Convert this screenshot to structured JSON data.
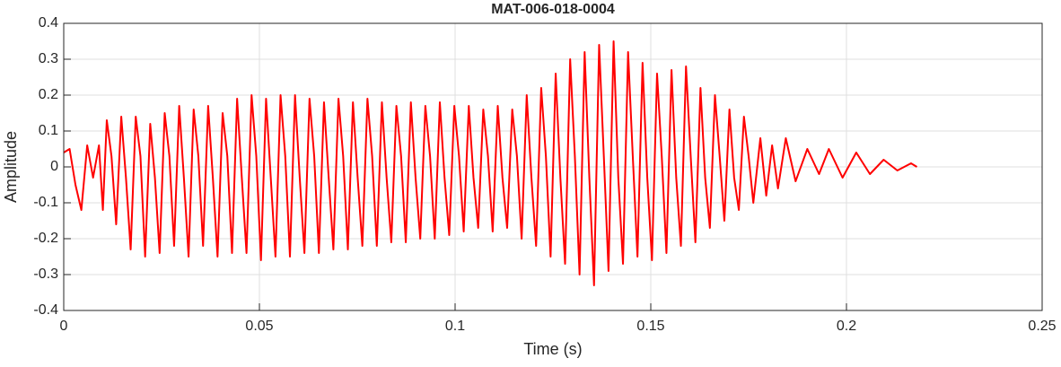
{
  "chart_data": {
    "type": "line",
    "title": "MAT-006-018-0004",
    "xlabel": "Time (s)",
    "ylabel": "Amplitude",
    "x": [
      0,
      0.0015,
      0.003,
      0.0045,
      0.006,
      0.0075,
      0.009,
      0.01,
      0.011,
      0.0122,
      0.0134,
      0.0147,
      0.0159,
      0.0171,
      0.0184,
      0.0196,
      0.0208,
      0.0221,
      0.0233,
      0.0245,
      0.0258,
      0.027,
      0.0282,
      0.0295,
      0.0307,
      0.0319,
      0.0332,
      0.0344,
      0.0356,
      0.0369,
      0.0381,
      0.0393,
      0.0406,
      0.0418,
      0.043,
      0.0443,
      0.0455,
      0.0467,
      0.048,
      0.0492,
      0.0504,
      0.0517,
      0.0529,
      0.0541,
      0.0554,
      0.0566,
      0.0578,
      0.0591,
      0.0603,
      0.0615,
      0.0628,
      0.064,
      0.0652,
      0.0665,
      0.0677,
      0.0689,
      0.0702,
      0.0714,
      0.0726,
      0.0739,
      0.0751,
      0.0763,
      0.0776,
      0.0788,
      0.08,
      0.0813,
      0.0825,
      0.0837,
      0.085,
      0.0862,
      0.0874,
      0.0887,
      0.0899,
      0.0911,
      0.0924,
      0.0936,
      0.0948,
      0.0961,
      0.0973,
      0.0985,
      0.0998,
      0.101,
      0.1022,
      0.1035,
      0.1047,
      0.1059,
      0.1072,
      0.1084,
      0.1096,
      0.1109,
      0.1121,
      0.1133,
      0.1146,
      0.1158,
      0.117,
      0.1183,
      0.1195,
      0.1207,
      0.122,
      0.1232,
      0.1244,
      0.1257,
      0.1269,
      0.1281,
      0.1294,
      0.1306,
      0.1318,
      0.1331,
      0.1343,
      0.1355,
      0.1368,
      0.138,
      0.1392,
      0.1405,
      0.1417,
      0.1429,
      0.1442,
      0.1454,
      0.1466,
      0.1479,
      0.1491,
      0.1503,
      0.1516,
      0.1528,
      0.154,
      0.1553,
      0.1565,
      0.1577,
      0.159,
      0.1602,
      0.1614,
      0.1627,
      0.1639,
      0.1651,
      0.1664,
      0.1676,
      0.1688,
      0.1701,
      0.1713,
      0.1725,
      0.1738,
      0.175,
      0.1762,
      0.178,
      0.1795,
      0.181,
      0.1825,
      0.1845,
      0.187,
      0.19,
      0.193,
      0.1955,
      0.199,
      0.2025,
      0.206,
      0.2095,
      0.213,
      0.2165,
      0.218
    ],
    "series": [
      {
        "name": "Amplitude",
        "color": "#ff0000",
        "values": [
          0.04,
          0.05,
          -0.05,
          -0.12,
          0.06,
          -0.03,
          0.06,
          -0.12,
          0.13,
          0.03,
          -0.16,
          0.14,
          -0.03,
          -0.23,
          0.14,
          0.03,
          -0.25,
          0.12,
          -0.03,
          -0.24,
          0.15,
          0.03,
          -0.22,
          0.17,
          -0.03,
          -0.25,
          0.16,
          0.03,
          -0.22,
          0.17,
          -0.03,
          -0.25,
          0.15,
          0.03,
          -0.24,
          0.19,
          -0.03,
          -0.24,
          0.2,
          0.03,
          -0.26,
          0.19,
          -0.03,
          -0.25,
          0.2,
          0.03,
          -0.25,
          0.2,
          -0.03,
          -0.24,
          0.19,
          0.03,
          -0.24,
          0.18,
          -0.03,
          -0.23,
          0.19,
          0.03,
          -0.23,
          0.18,
          -0.03,
          -0.22,
          0.19,
          0.03,
          -0.22,
          0.18,
          -0.03,
          -0.21,
          0.17,
          0.03,
          -0.21,
          0.18,
          -0.03,
          -0.2,
          0.17,
          0.03,
          -0.2,
          0.18,
          -0.03,
          -0.19,
          0.17,
          0.03,
          -0.18,
          0.17,
          -0.03,
          -0.17,
          0.16,
          0.03,
          -0.18,
          0.17,
          -0.03,
          -0.17,
          0.16,
          0.03,
          -0.2,
          0.2,
          -0.03,
          -0.22,
          0.22,
          0.03,
          -0.25,
          0.26,
          -0.03,
          -0.27,
          0.3,
          0.03,
          -0.3,
          0.32,
          -0.03,
          -0.33,
          0.34,
          0.03,
          -0.29,
          0.35,
          -0.03,
          -0.27,
          0.32,
          0.03,
          -0.25,
          0.29,
          -0.03,
          -0.26,
          0.26,
          0.03,
          -0.24,
          0.27,
          -0.03,
          -0.22,
          0.28,
          0.03,
          -0.21,
          0.22,
          -0.03,
          -0.17,
          0.2,
          0.03,
          -0.15,
          0.16,
          -0.03,
          -0.12,
          0.14,
          0.03,
          -0.1,
          0.08,
          -0.08,
          0.06,
          -0.06,
          0.08,
          -0.04,
          0.05,
          -0.02,
          0.05,
          -0.03,
          0.04,
          -0.02,
          0.02,
          -0.01,
          0.01,
          0
        ]
      }
    ],
    "xlim": [
      0,
      0.25
    ],
    "xticks": [
      0,
      0.05,
      0.1,
      0.15,
      0.2,
      0.25
    ],
    "ylim": [
      -0.4,
      0.4
    ],
    "yticks": [
      -0.4,
      -0.3,
      -0.2,
      -0.1,
      0,
      0.1,
      0.2,
      0.3,
      0.4
    ],
    "grid": true
  }
}
